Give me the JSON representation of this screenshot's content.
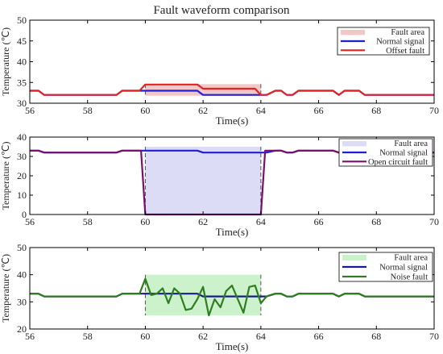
{
  "title": "Fault waveform comparison",
  "chart_data": [
    {
      "type": "line",
      "xlabel": "Time(s)",
      "ylabel": "Temperature (℃)",
      "xlim": [
        56,
        70
      ],
      "ylim": [
        30,
        50
      ],
      "xticks": [
        56,
        58,
        60,
        62,
        64,
        66,
        68,
        70
      ],
      "yticks": [
        30,
        35,
        40,
        45,
        50
      ],
      "fault_area": {
        "x": [
          60,
          64
        ],
        "y": [
          31.8,
          34.6
        ],
        "color": "#f4c7c7"
      },
      "legend": [
        "Fault area",
        "Normal signal",
        "Offset fault"
      ],
      "legend_position": "top-right",
      "series": [
        {
          "name": "Normal signal",
          "color": "#1f1fd6",
          "x": [
            56,
            56.3,
            56.5,
            59,
            59.2,
            61.8,
            62,
            64,
            64.2,
            64.5,
            64.7,
            64.9,
            65.1,
            65.3,
            66.5,
            66.7,
            66.9,
            67.4,
            67.6,
            70
          ],
          "y": [
            33,
            33,
            32,
            32,
            33,
            33,
            32,
            32,
            32,
            33,
            33,
            32,
            32,
            33,
            33,
            32,
            33,
            33,
            32,
            32
          ]
        },
        {
          "name": "Offset fault",
          "color": "#e02424",
          "x": [
            56,
            56.3,
            56.5,
            59,
            59.2,
            59.8,
            60,
            61.8,
            62,
            63.8,
            64,
            64.2,
            64.5,
            64.7,
            64.9,
            65.1,
            65.3,
            66.5,
            66.7,
            66.9,
            67.4,
            67.6,
            70
          ],
          "y": [
            33,
            33,
            32,
            32,
            33,
            33,
            34.5,
            34.5,
            33.5,
            33.5,
            32,
            32,
            33,
            33,
            32,
            32,
            33,
            33,
            32,
            33,
            33,
            32,
            32
          ]
        }
      ]
    },
    {
      "type": "line",
      "xlabel": "Time(s)",
      "ylabel": "Temperature (℃)",
      "xlim": [
        56,
        70
      ],
      "ylim": [
        0,
        40
      ],
      "xticks": [
        56,
        58,
        60,
        62,
        64,
        66,
        68,
        70
      ],
      "yticks": [
        0,
        10,
        20,
        30,
        40
      ],
      "fault_area": {
        "x": [
          60,
          64
        ],
        "y": [
          0,
          35
        ],
        "color": "#dcdcf7"
      },
      "legend": [
        "Fault area",
        "Normal signal",
        "Open circuit fault"
      ],
      "legend_position": "top-right",
      "series": [
        {
          "name": "Normal signal",
          "color": "#1f1fd6",
          "x": [
            56,
            56.3,
            56.5,
            59,
            59.2,
            61.8,
            62,
            64,
            64.2,
            64.5,
            64.7,
            64.9,
            65.1,
            65.3,
            66.5,
            66.7,
            66.9,
            67.4,
            67.6,
            70
          ],
          "y": [
            33,
            33,
            32,
            32,
            33,
            33,
            32,
            32,
            32,
            33,
            33,
            32,
            32,
            33,
            33,
            32,
            33,
            33,
            32,
            32
          ]
        },
        {
          "name": "Open circuit fault",
          "color": "#7a0f6e",
          "x": [
            56,
            56.3,
            56.5,
            59,
            59.2,
            59.85,
            60,
            64,
            64.15,
            64.5,
            64.7,
            64.9,
            65.1,
            65.3,
            66.5,
            66.7,
            66.9,
            67.4,
            67.6,
            70
          ],
          "y": [
            33,
            33,
            32,
            32,
            33,
            33,
            0,
            0,
            33,
            33,
            33,
            32,
            32,
            33,
            33,
            32,
            33,
            33,
            32,
            32
          ]
        }
      ]
    },
    {
      "type": "line",
      "xlabel": "Time(s)",
      "ylabel": "Temperature (℃)",
      "xlim": [
        56,
        70
      ],
      "ylim": [
        20,
        50
      ],
      "xticks": [
        56,
        58,
        60,
        62,
        64,
        66,
        68,
        70
      ],
      "yticks": [
        20,
        30,
        40,
        50
      ],
      "fault_area": {
        "x": [
          60,
          64
        ],
        "y": [
          25,
          40
        ],
        "color": "#ccf2cc"
      },
      "legend": [
        "Fault area",
        "Normal signal",
        "Noise fault"
      ],
      "legend_position": "top-right",
      "series": [
        {
          "name": "Normal signal",
          "color": "#1b1b8f",
          "x": [
            56,
            56.3,
            56.5,
            59,
            59.2,
            61.8,
            62,
            64,
            64.2,
            64.5,
            64.7,
            64.9,
            65.1,
            65.3,
            66.5,
            66.7,
            66.9,
            67.4,
            67.6,
            70
          ],
          "y": [
            33,
            33,
            32,
            32,
            33,
            33,
            32,
            32,
            32,
            33,
            33,
            32,
            32,
            33,
            33,
            32,
            33,
            33,
            32,
            32
          ]
        },
        {
          "name": "Noise fault",
          "color": "#2e7d1e",
          "x": [
            56,
            56.3,
            56.5,
            59,
            59.2,
            59.8,
            60,
            60.2,
            60.4,
            60.6,
            60.8,
            61,
            61.2,
            61.4,
            61.6,
            61.8,
            62,
            62.2,
            62.4,
            62.6,
            62.8,
            63,
            63.2,
            63.4,
            63.6,
            63.8,
            64,
            64.2,
            64.5,
            64.7,
            64.9,
            65.1,
            65.3,
            66.5,
            66.7,
            66.9,
            67.4,
            67.6,
            70
          ],
          "y": [
            33,
            33,
            32,
            32,
            33,
            33,
            38.5,
            32.5,
            33,
            35,
            29.5,
            35,
            33,
            27,
            27.5,
            31,
            35.5,
            25,
            31,
            28,
            34,
            36,
            31,
            26,
            35.5,
            36,
            29.5,
            32,
            33,
            33,
            32,
            32,
            33,
            33,
            32,
            33,
            33,
            32,
            32
          ]
        }
      ]
    }
  ]
}
